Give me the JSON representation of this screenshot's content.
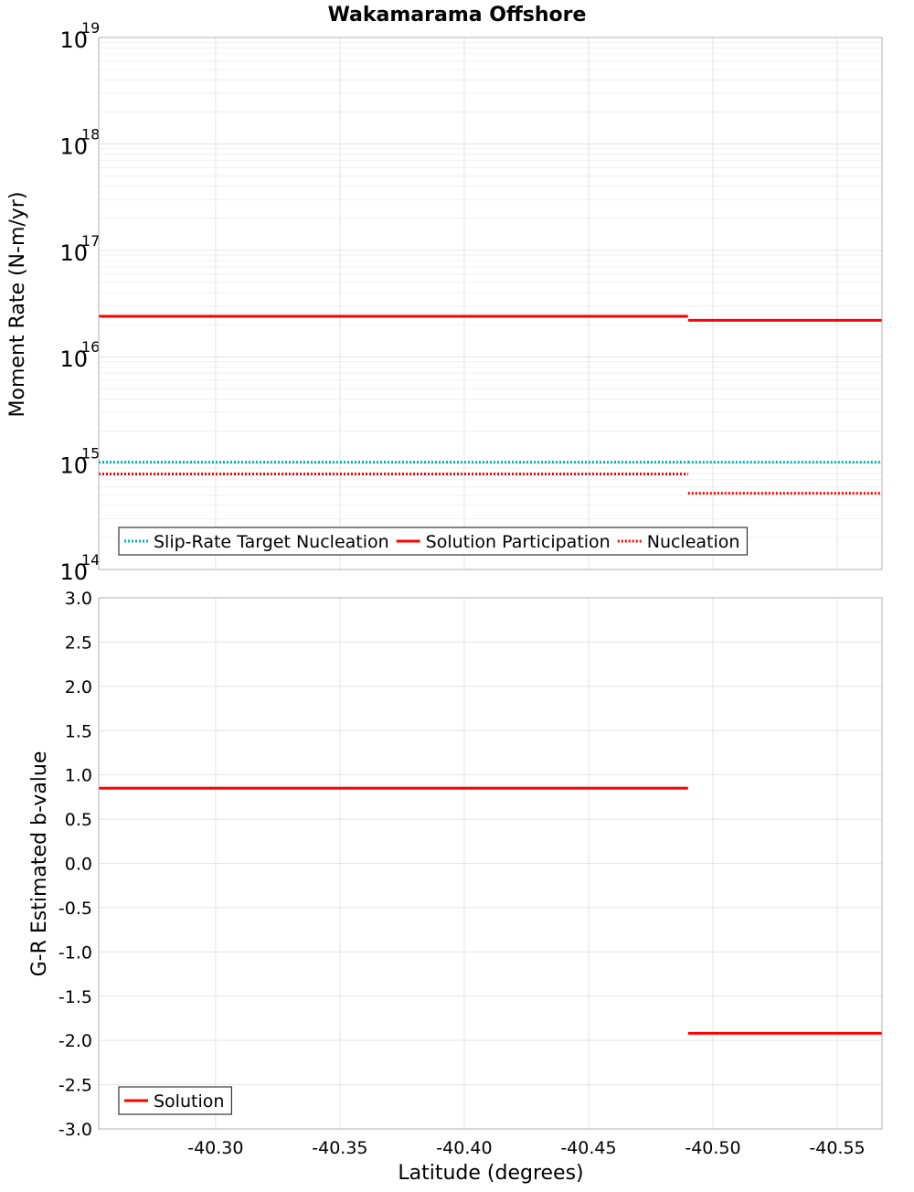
{
  "chart_data": [
    {
      "id": "moment",
      "type": "line",
      "title": "Wakamarama Offshore",
      "xlabel": "",
      "ylabel": "Moment Rate (N-m/yr)",
      "yscale": "log",
      "xlim": [
        -40.253,
        -40.568
      ],
      "ylim": [
        100000000000000.0,
        1e+19
      ],
      "x_ticks": [
        -40.3,
        -40.35,
        -40.4,
        -40.45,
        -40.5,
        -40.55
      ],
      "y_ticks": [
        {
          "value": 100000000000000.0,
          "base": "10",
          "exp": "14"
        },
        {
          "value": 1000000000000000.0,
          "base": "10",
          "exp": "15"
        },
        {
          "value": 1e+16,
          "base": "10",
          "exp": "16"
        },
        {
          "value": 1e+17,
          "base": "10",
          "exp": "17"
        },
        {
          "value": 1e+18,
          "base": "10",
          "exp": "18"
        },
        {
          "value": 1e+19,
          "base": "10",
          "exp": "19"
        }
      ],
      "grid": true,
      "legend_position": "bottom-left",
      "series": [
        {
          "name": "Slip-Rate Target Nucleation",
          "color": "#00b2b2",
          "style": "dotted",
          "segments": [
            {
              "x": [
                -40.253,
                -40.49
              ],
              "y": 1020000000000000.0
            },
            {
              "x": [
                -40.49,
                -40.568
              ],
              "y": 1020000000000000.0
            }
          ]
        },
        {
          "name": "Solution Participation",
          "color": "#ff0000",
          "style": "solid",
          "segments": [
            {
              "x": [
                -40.253,
                -40.49
              ],
              "y": 2.4e+16
            },
            {
              "x": [
                -40.49,
                -40.568
              ],
              "y": 2.2e+16
            }
          ]
        },
        {
          "name": "Nucleation",
          "color": "#ff0000",
          "style": "dotted",
          "segments": [
            {
              "x": [
                -40.253,
                -40.49
              ],
              "y": 790000000000000.0
            },
            {
              "x": [
                -40.49,
                -40.568
              ],
              "y": 520000000000000.0
            }
          ]
        }
      ]
    },
    {
      "id": "bvalue",
      "type": "line",
      "title": "",
      "xlabel": "Latitude (degrees)",
      "ylabel": "G-R Estimated b-value",
      "yscale": "linear",
      "xlim": [
        -40.253,
        -40.568
      ],
      "ylim": [
        -3.0,
        3.0
      ],
      "x_ticks": [
        -40.3,
        -40.35,
        -40.4,
        -40.45,
        -40.5,
        -40.55
      ],
      "x_tick_labels": [
        "-40.30",
        "-40.35",
        "-40.40",
        "-40.45",
        "-40.50",
        "-40.55"
      ],
      "y_ticks": [
        3.0,
        2.5,
        2.0,
        1.5,
        1.0,
        0.5,
        0.0,
        -0.5,
        -1.0,
        -1.5,
        -2.0,
        -2.5,
        -3.0
      ],
      "y_tick_labels": [
        "3.0",
        "2.5",
        "2.0",
        "1.5",
        "1.0",
        "0.5",
        "0.0",
        "-0.5",
        "-1.0",
        "-1.5",
        "-2.0",
        "-2.5",
        "-3.0"
      ],
      "grid": true,
      "legend_position": "bottom-left",
      "series": [
        {
          "name": "Solution",
          "color": "#ff0000",
          "style": "solid",
          "segments": [
            {
              "x": [
                -40.253,
                -40.49
              ],
              "y": 0.85
            },
            {
              "x": [
                -40.49,
                -40.568
              ],
              "y": -1.92
            }
          ]
        }
      ]
    }
  ]
}
